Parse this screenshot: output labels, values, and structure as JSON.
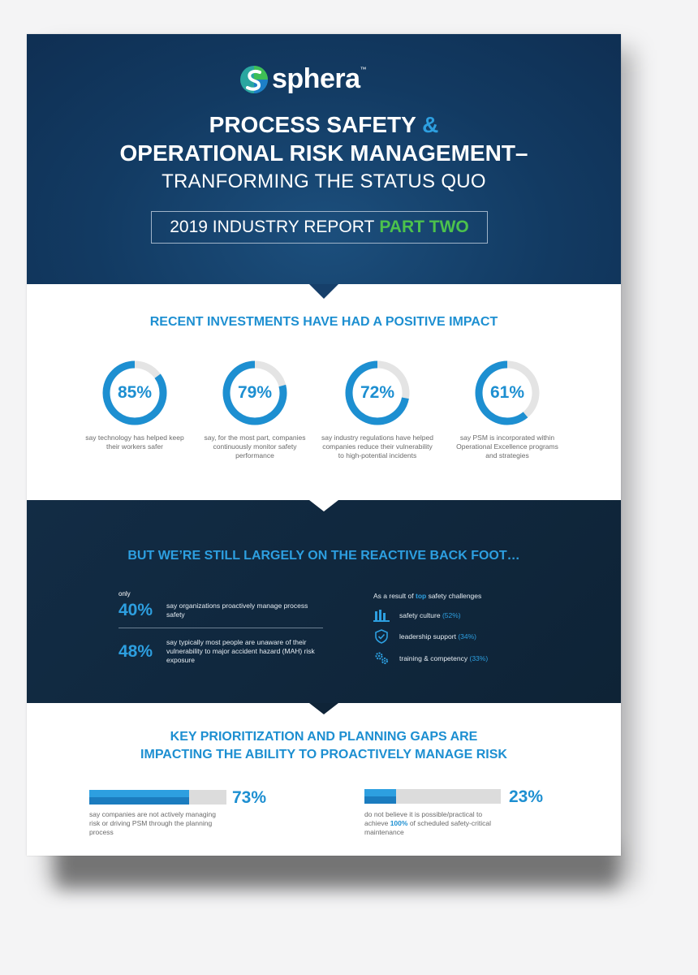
{
  "brand": {
    "name": "sphera",
    "tm": "™"
  },
  "header": {
    "title_line1": "PROCESS SAFETY",
    "title_amp": "&",
    "title_line2": "OPERATIONAL RISK MANAGEMENT–",
    "subtitle": "TRANFORMING THE STATUS QUO",
    "report_label": "2019 INDUSTRY REPORT",
    "report_part": "PART TWO"
  },
  "investments": {
    "heading": "RECENT INVESTMENTS HAVE HAD A POSITIVE IMPACT",
    "stats": [
      {
        "value": "85%",
        "fraction": 0.85,
        "caption": "say technology has helped keep their workers safer"
      },
      {
        "value": "79%",
        "fraction": 0.79,
        "caption": "say, for the most part, companies continuously monitor safety performance"
      },
      {
        "value": "72%",
        "fraction": 0.72,
        "caption": "say industry regulations have helped companies reduce their vulnerability to high-potential incidents"
      },
      {
        "value": "61%",
        "fraction": 0.61,
        "caption": "say PSM is incorporated within Operational Excellence programs and strategies"
      }
    ]
  },
  "reactive": {
    "heading": "BUT WE’RE STILL LARGELY ON THE REACTIVE BACK FOOT…",
    "only": "only",
    "stat1_value": "40%",
    "stat1_text": "say organizations proactively manage process safety",
    "stat2_value": "48%",
    "stat2_text": "say typically most people are unaware of their vulnerability to major accident hazard (MAH) risk exposure",
    "challenges_prefix": "As a result of",
    "challenges_top": "top",
    "challenges_suffix": "safety challenges",
    "challenges": [
      {
        "icon": "factory-icon",
        "label": "safety culture",
        "pct": "(52%)"
      },
      {
        "icon": "shield-check-icon",
        "label": "leadership support",
        "pct": "(34%)"
      },
      {
        "icon": "gears-icon",
        "label": "training & competency",
        "pct": "(33%)"
      }
    ]
  },
  "gaps": {
    "heading_line1": "KEY PRIORITIZATION AND PLANNING GAPS ARE",
    "heading_line2": "IMPACTING THE ABILITY TO PROACTIVELY MANAGE RISK",
    "stat1": {
      "value": "73%",
      "fraction": 0.73,
      "text": "say companies are not actively managing risk or driving PSM through the planning process"
    },
    "stat2": {
      "value": "23%",
      "fraction": 0.23,
      "text_before": "do not believe it is possible/practical to achieve",
      "text_bold": "100%",
      "text_after": "of scheduled safety-critical maintenance"
    }
  },
  "colors": {
    "navy": "#123a62",
    "accent": "#1d8fd1",
    "green": "#4cc24c"
  }
}
